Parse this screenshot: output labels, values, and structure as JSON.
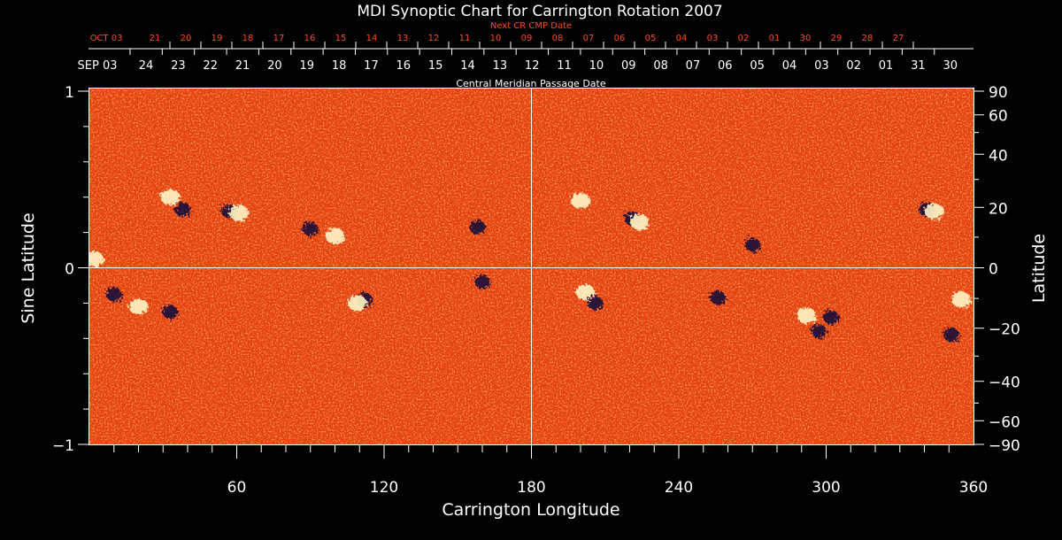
{
  "chart_data": {
    "type": "heatmap",
    "title": "MDI Synoptic Chart for Carrington Rotation 2007",
    "xlabel": "Carrington Longitude",
    "ylabel_left": "Sine Latitude",
    "ylabel_right": "Latitude",
    "top_axis_label": "Central Meridian Passage Date",
    "next_axis_label": "Next CR CMP Date",
    "xlim": [
      0,
      360
    ],
    "ylim": [
      -1,
      1
    ],
    "x_ticks": [
      "60",
      "120",
      "180",
      "240",
      "300",
      "360"
    ],
    "x_tick_values": [
      60,
      120,
      180,
      240,
      300,
      360
    ],
    "y_left_ticks": [
      "1",
      "0",
      "−1"
    ],
    "y_left_tick_values": [
      1,
      0,
      -1
    ],
    "y_right_ticks": [
      "90",
      "60",
      "40",
      "20",
      "0",
      "−20",
      "−40",
      "−60",
      "−90"
    ],
    "y_right_tick_values": [
      90,
      60,
      40,
      20,
      0,
      -20,
      -40,
      -60,
      -90
    ],
    "cmp_dates": [
      "SEP 03",
      "24",
      "23",
      "22",
      "21",
      "20",
      "19",
      "18",
      "17",
      "16",
      "15",
      "14",
      "13",
      "12",
      "11",
      "10",
      "09",
      "08",
      "07",
      "06",
      "05",
      "04",
      "03",
      "02",
      "01",
      "31",
      "30"
    ],
    "next_cr_dates": [
      "OCT 03",
      "21",
      "20",
      "19",
      "18",
      "17",
      "16",
      "15",
      "14",
      "13",
      "12",
      "11",
      "10",
      "09",
      "08",
      "07",
      "06",
      "05",
      "04",
      "03",
      "02",
      "01",
      "30",
      "29",
      "28",
      "27"
    ],
    "crosshair": {
      "longitude": 180,
      "sine_latitude": 0
    },
    "colors": {
      "background": "#000000",
      "field_base": "#e8400c",
      "positive": "#fff6c8",
      "negative": "#1a0f3a",
      "axis": "#ffffff",
      "next_cr_text": "#ff4a1a"
    },
    "active_regions": [
      {
        "lon": 33,
        "sinlat": 0.4,
        "polarity": "positive"
      },
      {
        "lon": 38,
        "sinlat": 0.33,
        "polarity": "negative"
      },
      {
        "lon": 57,
        "sinlat": 0.32,
        "polarity": "negative"
      },
      {
        "lon": 61,
        "sinlat": 0.31,
        "polarity": "positive"
      },
      {
        "lon": 90,
        "sinlat": 0.22,
        "polarity": "negative"
      },
      {
        "lon": 100,
        "sinlat": 0.18,
        "polarity": "positive"
      },
      {
        "lon": 2,
        "sinlat": 0.05,
        "polarity": "positive"
      },
      {
        "lon": 10,
        "sinlat": -0.15,
        "polarity": "negative"
      },
      {
        "lon": 20,
        "sinlat": -0.22,
        "polarity": "positive"
      },
      {
        "lon": 33,
        "sinlat": -0.25,
        "polarity": "negative"
      },
      {
        "lon": 112,
        "sinlat": -0.18,
        "polarity": "negative"
      },
      {
        "lon": 109,
        "sinlat": -0.2,
        "polarity": "positive"
      },
      {
        "lon": 202,
        "sinlat": -0.14,
        "polarity": "positive"
      },
      {
        "lon": 206,
        "sinlat": -0.2,
        "polarity": "negative"
      },
      {
        "lon": 221,
        "sinlat": 0.28,
        "polarity": "negative"
      },
      {
        "lon": 224,
        "sinlat": 0.26,
        "polarity": "positive"
      },
      {
        "lon": 200,
        "sinlat": 0.38,
        "polarity": "positive"
      },
      {
        "lon": 256,
        "sinlat": -0.17,
        "polarity": "negative"
      },
      {
        "lon": 270,
        "sinlat": 0.13,
        "polarity": "negative"
      },
      {
        "lon": 292,
        "sinlat": -0.27,
        "polarity": "positive"
      },
      {
        "lon": 302,
        "sinlat": -0.28,
        "polarity": "negative"
      },
      {
        "lon": 297,
        "sinlat": -0.36,
        "polarity": "negative"
      },
      {
        "lon": 341,
        "sinlat": 0.33,
        "polarity": "negative"
      },
      {
        "lon": 344,
        "sinlat": 0.32,
        "polarity": "positive"
      },
      {
        "lon": 351,
        "sinlat": -0.38,
        "polarity": "negative"
      },
      {
        "lon": 355,
        "sinlat": -0.18,
        "polarity": "positive"
      },
      {
        "lon": 160,
        "sinlat": -0.08,
        "polarity": "negative"
      },
      {
        "lon": 158,
        "sinlat": 0.23,
        "polarity": "negative"
      }
    ]
  }
}
